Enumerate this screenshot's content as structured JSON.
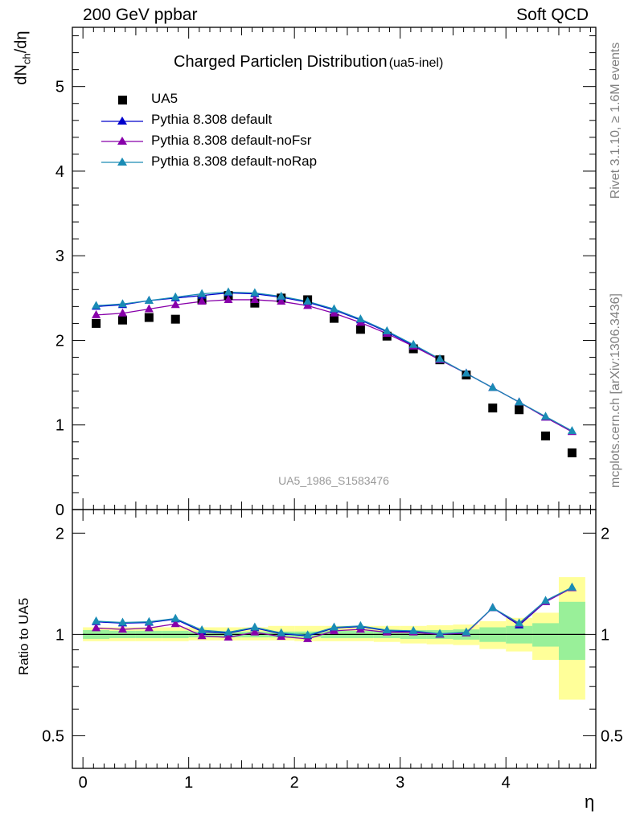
{
  "header": {
    "left": "200 GeV ppbar",
    "right": "Soft QCD"
  },
  "side": {
    "rivet": "Rivet 3.1.10, ≥ 1.6M events",
    "mcplots": "mcplots.cern.ch [arXiv:1306.3436]"
  },
  "chart_data": [
    {
      "type": "scatter",
      "title_main": "Charged Particleη Distribution",
      "title_tag": "(ua5-inel)",
      "analysis_label": "UA5_1986_S1583476",
      "ylabel": "dN_ch/dη",
      "xlim": [
        -0.1,
        4.85
      ],
      "ylim": [
        0,
        5.7
      ],
      "yticks": [
        0,
        1,
        2,
        3,
        4,
        5
      ],
      "x": [
        0.125,
        0.375,
        0.625,
        0.875,
        1.125,
        1.375,
        1.625,
        1.875,
        2.125,
        2.375,
        2.625,
        2.875,
        3.125,
        3.375,
        3.625,
        3.875,
        4.125,
        4.375,
        4.625
      ],
      "series": [
        {
          "name": "UA5",
          "marker": "square",
          "color": "#000000",
          "values": [
            2.2,
            2.24,
            2.27,
            2.25,
            2.48,
            2.53,
            2.44,
            2.5,
            2.48,
            2.26,
            2.13,
            2.05,
            1.9,
            1.77,
            1.59,
            1.2,
            1.18,
            0.87,
            0.67
          ]
        },
        {
          "name": "Pythia 8.308 default",
          "marker": "triangle",
          "color": "#0000cc",
          "values": [
            2.4,
            2.42,
            2.47,
            2.5,
            2.53,
            2.56,
            2.55,
            2.51,
            2.45,
            2.36,
            2.24,
            2.1,
            1.94,
            1.77,
            1.61,
            1.44,
            1.27,
            1.09,
            0.92
          ]
        },
        {
          "name": "Pythia 8.308 default-noFsr",
          "marker": "triangle",
          "color": "#8800aa",
          "values": [
            2.3,
            2.32,
            2.37,
            2.42,
            2.46,
            2.48,
            2.48,
            2.46,
            2.41,
            2.32,
            2.21,
            2.08,
            1.93,
            1.77,
            1.61,
            1.44,
            1.27,
            1.09,
            0.92
          ]
        },
        {
          "name": "Pythia 8.308 default-noRap",
          "marker": "triangle",
          "color": "#1a8cb5",
          "values": [
            2.41,
            2.43,
            2.47,
            2.51,
            2.55,
            2.57,
            2.56,
            2.52,
            2.46,
            2.37,
            2.25,
            2.11,
            1.95,
            1.78,
            1.61,
            1.44,
            1.27,
            1.1,
            0.93
          ]
        }
      ]
    },
    {
      "type": "line",
      "ylabel": "Ratio to UA5",
      "xlabel": "η",
      "xlim": [
        -0.1,
        4.85
      ],
      "ylim": [
        0.4,
        2.35
      ],
      "xticks": [
        0,
        1,
        2,
        3,
        4
      ],
      "yticks": [
        0.5,
        1,
        2
      ],
      "bins": [
        [
          0,
          0.25
        ],
        [
          0.25,
          0.5
        ],
        [
          0.5,
          0.75
        ],
        [
          0.75,
          1.0
        ],
        [
          1.0,
          1.25
        ],
        [
          1.25,
          1.5
        ],
        [
          1.5,
          1.75
        ],
        [
          1.75,
          2.0
        ],
        [
          2.0,
          2.25
        ],
        [
          2.25,
          2.5
        ],
        [
          2.5,
          2.75
        ],
        [
          2.75,
          3.0
        ],
        [
          3.0,
          3.25
        ],
        [
          3.25,
          3.5
        ],
        [
          3.5,
          3.75
        ],
        [
          3.75,
          4.0
        ],
        [
          4.0,
          4.25
        ],
        [
          4.25,
          4.5
        ],
        [
          4.5,
          4.75
        ]
      ],
      "band_inner": [
        [
          0.97,
          1.03
        ],
        [
          0.975,
          1.025
        ],
        [
          0.975,
          1.025
        ],
        [
          0.975,
          1.025
        ],
        [
          0.98,
          1.02
        ],
        [
          0.98,
          1.02
        ],
        [
          0.98,
          1.02
        ],
        [
          0.98,
          1.02
        ],
        [
          0.98,
          1.02
        ],
        [
          0.975,
          1.025
        ],
        [
          0.975,
          1.025
        ],
        [
          0.975,
          1.025
        ],
        [
          0.97,
          1.03
        ],
        [
          0.97,
          1.03
        ],
        [
          0.965,
          1.035
        ],
        [
          0.95,
          1.05
        ],
        [
          0.94,
          1.06
        ],
        [
          0.92,
          1.08
        ],
        [
          0.84,
          1.25
        ]
      ],
      "band_outer": [
        [
          0.955,
          1.05
        ],
        [
          0.955,
          1.05
        ],
        [
          0.955,
          1.05
        ],
        [
          0.955,
          1.05
        ],
        [
          0.96,
          1.05
        ],
        [
          0.96,
          1.05
        ],
        [
          0.96,
          1.05
        ],
        [
          0.96,
          1.06
        ],
        [
          0.955,
          1.06
        ],
        [
          0.955,
          1.06
        ],
        [
          0.955,
          1.06
        ],
        [
          0.95,
          1.06
        ],
        [
          0.94,
          1.06
        ],
        [
          0.935,
          1.065
        ],
        [
          0.93,
          1.07
        ],
        [
          0.905,
          1.095
        ],
        [
          0.89,
          1.12
        ],
        [
          0.84,
          1.16
        ],
        [
          0.64,
          1.48
        ]
      ],
      "x": [
        0.125,
        0.375,
        0.625,
        0.875,
        1.125,
        1.375,
        1.625,
        1.875,
        2.125,
        2.375,
        2.625,
        2.875,
        3.125,
        3.375,
        3.625,
        3.875,
        4.125,
        4.375,
        4.625
      ],
      "series": [
        {
          "name": "Pythia 8.308 default",
          "color": "#0000cc",
          "values": [
            1.09,
            1.08,
            1.085,
            1.11,
            1.02,
            1.01,
            1.045,
            1.005,
            0.99,
            1.045,
            1.055,
            1.025,
            1.02,
            1.0,
            1.01,
            1.2,
            1.065,
            1.25,
            1.375
          ]
        },
        {
          "name": "Pythia 8.308 default-noFsr",
          "color": "#8800aa",
          "values": [
            1.045,
            1.035,
            1.045,
            1.075,
            0.99,
            0.98,
            1.015,
            0.985,
            0.97,
            1.025,
            1.035,
            1.015,
            1.015,
            1.0,
            1.01,
            1.2,
            1.075,
            1.25,
            1.375
          ]
        },
        {
          "name": "Pythia 8.308 default-noRap",
          "color": "#1a8cb5",
          "values": [
            1.095,
            1.085,
            1.09,
            1.115,
            1.03,
            1.015,
            1.05,
            1.01,
            0.995,
            1.05,
            1.06,
            1.03,
            1.025,
            1.005,
            1.015,
            1.2,
            1.08,
            1.26,
            1.38
          ]
        }
      ]
    }
  ]
}
